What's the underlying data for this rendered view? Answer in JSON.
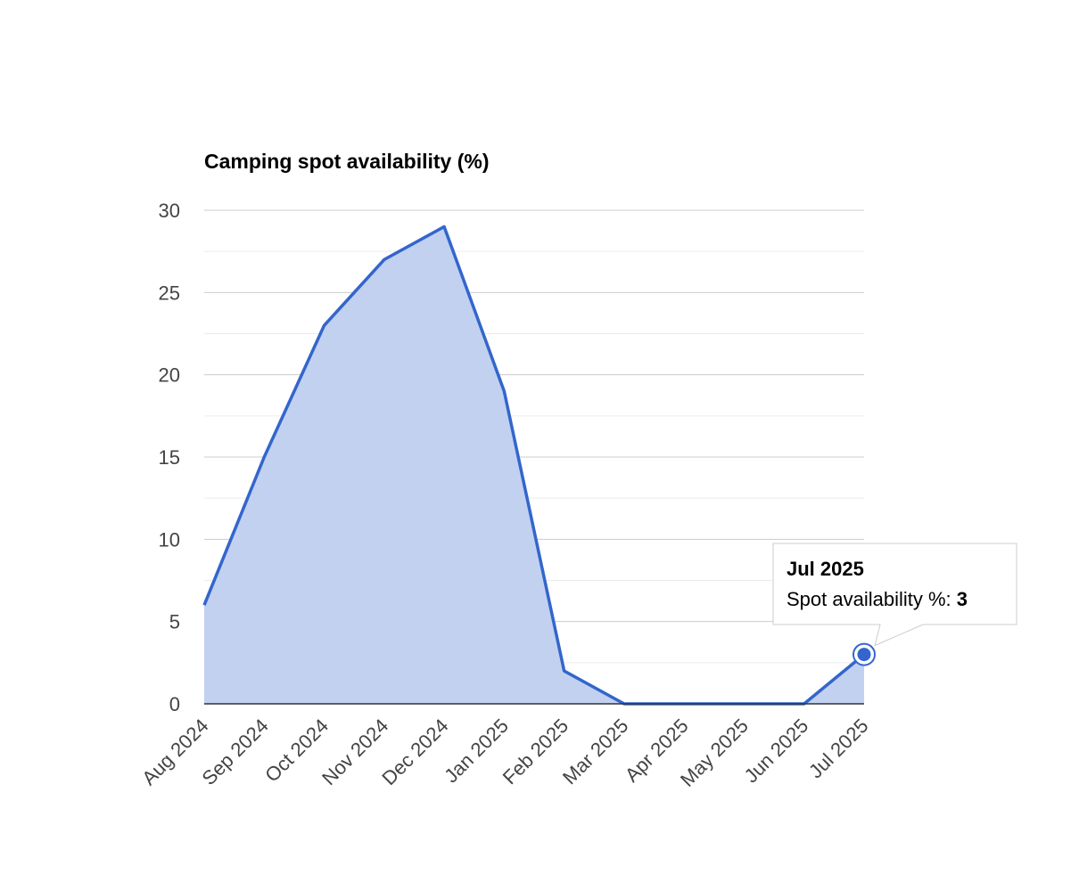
{
  "chart_data": {
    "type": "area",
    "title": "Camping spot availability (%)",
    "xlabel": "",
    "ylabel": "",
    "categories": [
      "Aug 2024",
      "Sep 2024",
      "Oct 2024",
      "Nov 2024",
      "Dec 2024",
      "Jan 2025",
      "Feb 2025",
      "Mar 2025",
      "Apr 2025",
      "May 2025",
      "Jun 2025",
      "Jul 2025"
    ],
    "series": [
      {
        "name": "Spot availability %",
        "values": [
          6,
          15,
          23,
          27,
          29,
          19,
          2,
          0,
          0,
          0,
          0,
          3
        ],
        "color": "#3366cc"
      }
    ],
    "ylim": [
      0,
      30
    ],
    "yticks": [
      0,
      5,
      10,
      15,
      20,
      25,
      30
    ],
    "grid": true,
    "legend": "none",
    "fill_color": "#c2d1f0"
  },
  "tooltip": {
    "title": "Jul 2025",
    "label": "Spot availability %: ",
    "value": "3",
    "category_index": 11
  }
}
